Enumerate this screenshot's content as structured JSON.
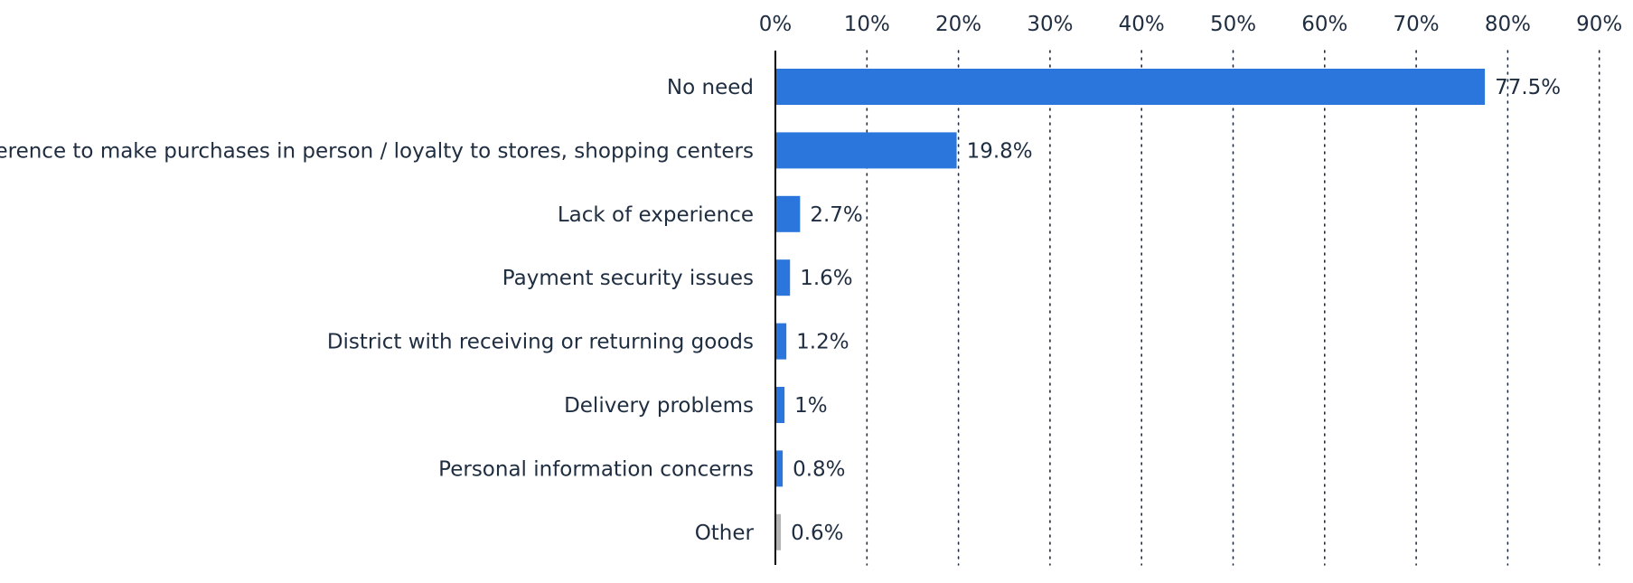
{
  "chart_data": {
    "type": "bar",
    "orientation": "horizontal",
    "title": "",
    "xlabel": "",
    "ylabel": "",
    "xlim": [
      0,
      90
    ],
    "x_ticks": [
      0,
      10,
      20,
      30,
      40,
      50,
      60,
      70,
      80,
      90
    ],
    "x_tick_labels": [
      "0%",
      "10%",
      "20%",
      "30%",
      "40%",
      "50%",
      "60%",
      "70%",
      "80%",
      "90%"
    ],
    "x_axis_position": "top",
    "grid": "vertical dotted",
    "categories": [
      "No need",
      "Preference to make purchases in person / loyalty to stores, shopping centers",
      "Lack of experience",
      "Payment security issues",
      "District with receiving or returning goods",
      "Delivery problems",
      "Personal information concerns",
      "Other"
    ],
    "values": [
      77.5,
      19.8,
      2.7,
      1.6,
      1.2,
      1,
      0.8,
      0.6
    ],
    "value_labels": [
      "77.5%",
      "19.8%",
      "2.7%",
      "1.6%",
      "1.2%",
      "1%",
      "0.8%",
      "0.6%"
    ],
    "colors": [
      "#2a76dd",
      "#2a76dd",
      "#2a76dd",
      "#2a76dd",
      "#2a76dd",
      "#2a76dd",
      "#2a76dd",
      "#b3b3b3"
    ],
    "text_color": "#1f2d40",
    "grid_color": "#1f2d40",
    "axis_color": "#000000"
  }
}
